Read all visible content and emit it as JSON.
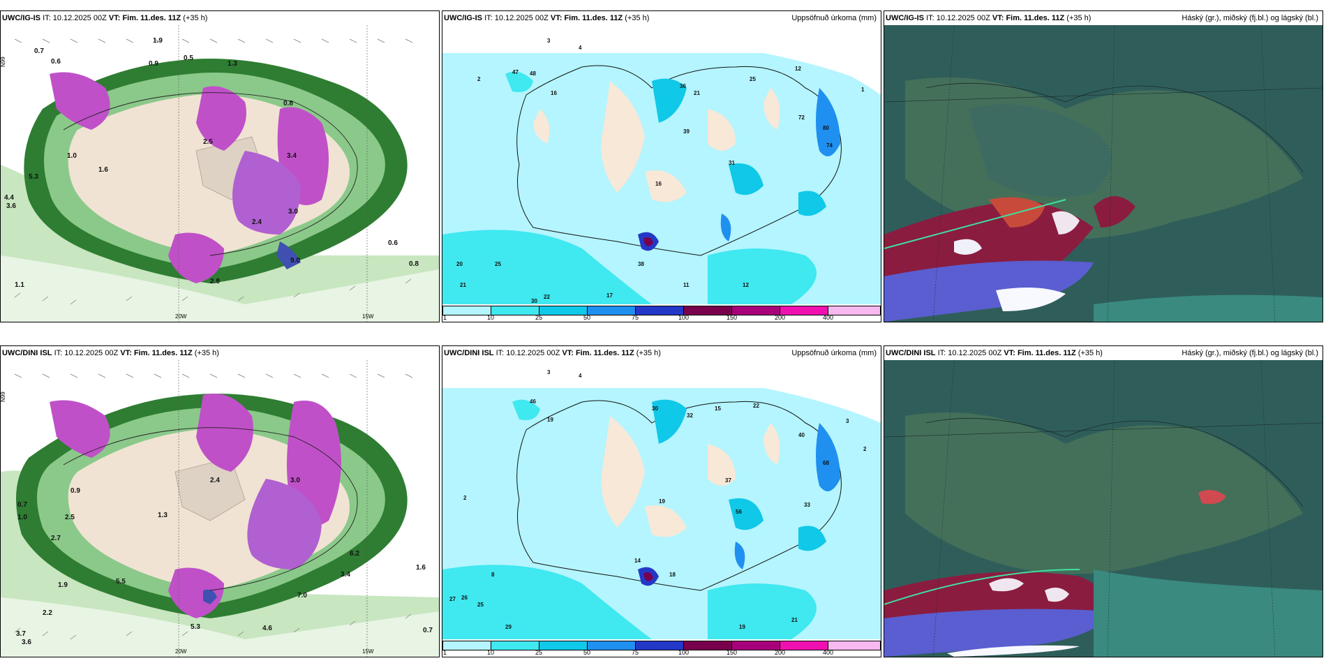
{
  "top": {
    "wind": {
      "model": "UWC/IG-IS",
      "it_label": "IT:",
      "it": "10.12.2025 00Z",
      "vt_label": "VT:",
      "vt": "Fim. 11.des. 11Z",
      "lead": "(+35 h)",
      "subtitle": "",
      "lat_label": "N99",
      "lon_labels": [
        "20W",
        "15W"
      ],
      "values": [
        "0.7",
        "0.6",
        "1.9",
        "0.9",
        "0.5",
        "1.3",
        "0.8",
        "3.4",
        "2.5",
        "1.6",
        "3.0",
        "2.4",
        "9.0",
        "0.6",
        "0.8",
        "1.0",
        "4.4",
        "3.6",
        "5.3",
        "1.1",
        "2.8"
      ]
    },
    "precip": {
      "model": "UWC/IG-IS",
      "it_label": "IT:",
      "it": "10.12.2025 00Z",
      "vt_label": "VT:",
      "vt": "Fim. 11.des. 11Z",
      "lead": "(+35 h)",
      "subtitle": "Uppsöfnuð úrkoma (mm)",
      "values": [
        "3",
        "4",
        "2",
        "47",
        "48",
        "16",
        "36",
        "21",
        "25",
        "72",
        "80",
        "74",
        "31",
        "39",
        "16",
        "38",
        "12",
        "20",
        "25",
        "21",
        "22",
        "30",
        "17",
        "11",
        "12",
        "1"
      ]
    },
    "cloud": {
      "model": "UWC/IG-IS",
      "it_label": "IT:",
      "it": "10.12.2025 00Z",
      "vt_label": "VT:",
      "vt": "Fim. 11.des. 11Z",
      "lead": "(+35 h)",
      "subtitle": "Háský (gr.), miðský (fj.bl.) og lágský (bl.)"
    }
  },
  "bottom": {
    "wind": {
      "model": "UWC/DINI ISL",
      "it_label": "IT:",
      "it": "10.12.2025 00Z",
      "vt_label": "VT:",
      "vt": "Fim. 11.des. 11Z",
      "lead": "(+35 h)",
      "subtitle": "",
      "lat_label": "N99",
      "lon_labels": [
        "20W",
        "15W"
      ],
      "values": [
        "0.7",
        "1.0",
        "2.5",
        "2.7",
        "1.9",
        "3.7",
        "3.6",
        "3.0",
        "2.4",
        "7.0",
        "5.3",
        "4.6",
        "0.7",
        "1.6",
        "3.4",
        "6.2",
        "0.9",
        "1.3",
        "5.5",
        "2.2"
      ]
    },
    "precip": {
      "model": "UWC/DINI ISL",
      "it_label": "IT:",
      "it": "10.12.2025 00Z",
      "vt_label": "VT:",
      "vt": "Fim. 11.des. 11Z",
      "lead": "(+35 h)",
      "subtitle": "Uppsöfnuð úrkoma (mm)",
      "values": [
        "3",
        "4",
        "2",
        "46",
        "19",
        "30",
        "32",
        "15",
        "22",
        "40",
        "68",
        "37",
        "56",
        "19",
        "14",
        "18",
        "27",
        "26",
        "25",
        "29",
        "19",
        "21",
        "8",
        "2",
        "3",
        "33"
      ]
    },
    "cloud": {
      "model": "UWC/DINI ISL",
      "it_label": "IT:",
      "it": "10.12.2025 00Z",
      "vt_label": "VT:",
      "vt": "Fim. 11.des. 11Z",
      "lead": "(+35 h)",
      "subtitle": "Háský (gr.), miðský (fj.bl.) og lágský (bl.)"
    }
  },
  "colorbar": {
    "labels": [
      "1",
      "10",
      "25",
      "50",
      "75",
      "100",
      "150",
      "200",
      "400"
    ],
    "colors": [
      "#b4f5ff",
      "#40e8f0",
      "#10c8e8",
      "#2090f0",
      "#2438c8",
      "#78004c",
      "#a8007a",
      "#f010b0",
      "#f8b8f0"
    ]
  }
}
